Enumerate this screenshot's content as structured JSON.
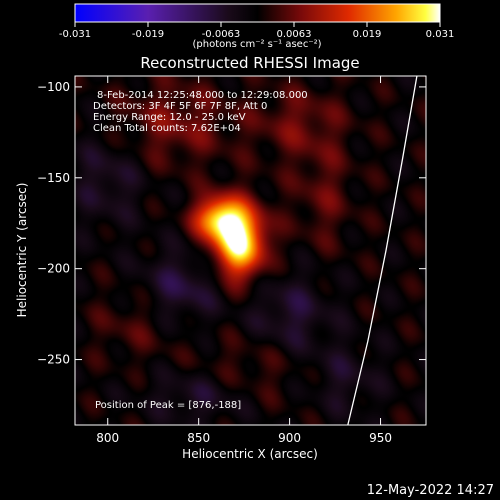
{
  "chart_data": {
    "type": "heatmap",
    "title": "Reconstructed RHESSI Image",
    "xlabel": "Heliocentric X (arcsec)",
    "ylabel": "Heliocentric Y (arcsec)",
    "xlim": [
      782,
      975
    ],
    "ylim": [
      -286,
      -94
    ],
    "xticks": [
      800,
      850,
      900,
      950
    ],
    "yticks": [
      -100,
      -150,
      -200,
      -250
    ],
    "colorbar": {
      "min": -0.031,
      "max": 0.031,
      "ticks": [
        "-0.031",
        "-0.019",
        "-0.0063",
        "0.0063",
        "0.019",
        "0.031"
      ],
      "unit_label": "(photons cm⁻² s⁻¹ asec⁻²)",
      "colormap": "blue-purple-black-red-orange-yellow-white"
    },
    "annotations": [
      "8-Feb-2014 12:25:48.000 to 12:29:08.000",
      "Detectors: 3F 4F 5F 6F 7F 8F, Att 0",
      "Energy Range: 12.0 - 25.0 keV",
      "Clean     Total counts: 7.62E+04"
    ],
    "peak_label": "Position of Peak = [876,-188]",
    "peak": [
      876,
      -188
    ],
    "limb_curve": [
      [
        970,
        -94
      ],
      [
        962,
        -140
      ],
      [
        953,
        -190
      ],
      [
        943,
        -240
      ],
      [
        932,
        -286
      ]
    ],
    "sources": [
      {
        "x": 872,
        "y": -185,
        "sx": 10,
        "sy": 14,
        "amp": 0.031
      },
      {
        "x": 860,
        "y": -172,
        "sx": 9,
        "sy": 8,
        "amp": 0.022
      },
      {
        "x": 836,
        "y": -120,
        "sx": 22,
        "sy": 16,
        "amp": 0.007
      },
      {
        "x": 905,
        "y": -120,
        "sx": 18,
        "sy": 14,
        "amp": 0.006
      },
      {
        "x": 918,
        "y": -160,
        "sx": 12,
        "sy": 20,
        "amp": 0.005
      },
      {
        "x": 815,
        "y": -230,
        "sx": 16,
        "sy": 14,
        "amp": 0.004
      },
      {
        "x": 880,
        "y": -255,
        "sx": 22,
        "sy": 14,
        "amp": 0.004
      },
      {
        "x": 800,
        "y": -150,
        "sx": 14,
        "sy": 18,
        "amp": -0.006
      },
      {
        "x": 840,
        "y": -210,
        "sx": 16,
        "sy": 14,
        "amp": -0.008
      },
      {
        "x": 900,
        "y": -225,
        "sx": 16,
        "sy": 16,
        "amp": -0.007
      },
      {
        "x": 850,
        "y": -270,
        "sx": 20,
        "sy": 10,
        "amp": -0.006
      },
      {
        "x": 930,
        "y": -260,
        "sx": 14,
        "sy": 14,
        "amp": -0.005
      }
    ]
  },
  "timestamp": "12-May-2022 14:27"
}
